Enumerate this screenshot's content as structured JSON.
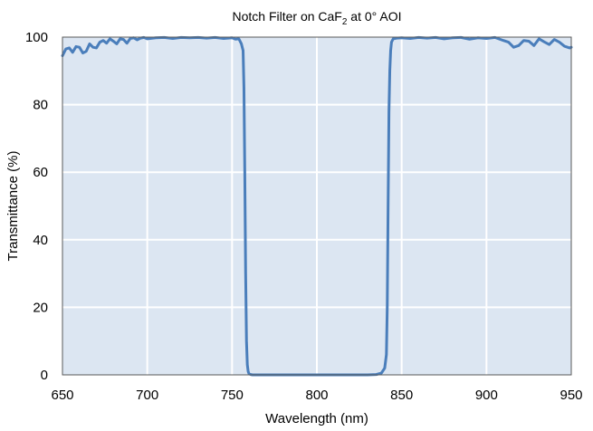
{
  "chart_data": {
    "type": "line",
    "title": {
      "text": "Notch Filter on CaF",
      "subscript": "2",
      "suffix": " at 0° AOI"
    },
    "xlabel": "Wavelength (nm)",
    "ylabel": "Transmittance (%)",
    "xlim": [
      650,
      950
    ],
    "ylim": [
      0,
      100
    ],
    "xticks": [
      650,
      700,
      750,
      800,
      850,
      900,
      950
    ],
    "yticks": [
      0,
      20,
      40,
      60,
      80,
      100
    ],
    "grid": true,
    "legend": "none",
    "colors": {
      "plot_background": "#dce6f2",
      "gridline": "#ffffff",
      "series_line": "#4a7ebb"
    },
    "series": [
      {
        "x": [
          650,
          652,
          654,
          656,
          658,
          660,
          662,
          664,
          666,
          668,
          670,
          672,
          674,
          676,
          678,
          680,
          682,
          684,
          686,
          688,
          690,
          692,
          694,
          696,
          698,
          700,
          705,
          710,
          715,
          720,
          725,
          730,
          735,
          740,
          745,
          750,
          752,
          754,
          755.5,
          756.5,
          757,
          757.5,
          758,
          758.5,
          759,
          759.5,
          760,
          761,
          762,
          765,
          770,
          780,
          790,
          800,
          810,
          820,
          830,
          835,
          838,
          840,
          841,
          841.5,
          842,
          842.5,
          843,
          843.5,
          844,
          845,
          847,
          850,
          855,
          860,
          865,
          870,
          875,
          880,
          885,
          890,
          895,
          900,
          905,
          910,
          913,
          916,
          919,
          922,
          925,
          928,
          931,
          934,
          937,
          940,
          943,
          946,
          949,
          950
        ],
        "y": [
          94.5,
          96.5,
          96.8,
          95.5,
          97.2,
          97.0,
          95.3,
          95.8,
          98.0,
          97.0,
          96.8,
          98.5,
          99.0,
          98.2,
          99.5,
          98.8,
          98.0,
          99.5,
          99.3,
          98.2,
          99.6,
          99.8,
          99.2,
          99.7,
          99.9,
          99.5,
          99.8,
          99.9,
          99.6,
          99.9,
          99.8,
          99.9,
          99.7,
          99.9,
          99.6,
          99.8,
          99.4,
          99.5,
          98.0,
          96.0,
          85.0,
          60.0,
          30.0,
          10.0,
          3.0,
          1.0,
          0.3,
          0.1,
          0.0,
          0.0,
          0.0,
          0.0,
          0.0,
          0.0,
          0.0,
          0.0,
          0.0,
          0.1,
          0.5,
          2.0,
          6.0,
          20.0,
          50.0,
          78.0,
          90.0,
          96.0,
          98.5,
          99.5,
          99.7,
          99.8,
          99.6,
          99.9,
          99.7,
          99.9,
          99.5,
          99.8,
          99.9,
          99.4,
          99.8,
          99.6,
          99.9,
          99.0,
          98.5,
          97.0,
          97.5,
          99.0,
          98.8,
          97.5,
          99.5,
          98.6,
          97.8,
          99.3,
          98.5,
          97.3,
          96.8,
          97.0
        ]
      }
    ]
  }
}
